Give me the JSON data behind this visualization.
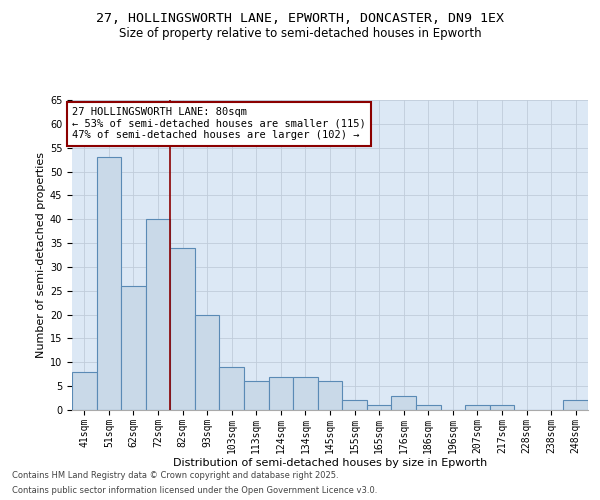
{
  "title_line1": "27, HOLLINGSWORTH LANE, EPWORTH, DONCASTER, DN9 1EX",
  "title_line2": "Size of property relative to semi-detached houses in Epworth",
  "xlabel": "Distribution of semi-detached houses by size in Epworth",
  "ylabel": "Number of semi-detached properties",
  "categories": [
    "41sqm",
    "51sqm",
    "62sqm",
    "72sqm",
    "82sqm",
    "93sqm",
    "103sqm",
    "113sqm",
    "124sqm",
    "134sqm",
    "145sqm",
    "155sqm",
    "165sqm",
    "176sqm",
    "186sqm",
    "196sqm",
    "207sqm",
    "217sqm",
    "228sqm",
    "238sqm",
    "248sqm"
  ],
  "values": [
    8,
    53,
    26,
    40,
    34,
    20,
    9,
    6,
    7,
    7,
    6,
    2,
    1,
    3,
    1,
    0,
    1,
    1,
    0,
    0,
    2
  ],
  "bar_color": "#c9d9e8",
  "bar_edge_color": "#5a8ab5",
  "bar_linewidth": 0.8,
  "vline_x": 3.5,
  "vline_color": "#8b0000",
  "vline_label": "27 HOLLINGSWORTH LANE: 80sqm",
  "annotation_smaller": "← 53% of semi-detached houses are smaller (115)",
  "annotation_larger": "47% of semi-detached houses are larger (102) →",
  "annotation_box_color": "#8b0000",
  "ylim": [
    0,
    65
  ],
  "yticks": [
    0,
    5,
    10,
    15,
    20,
    25,
    30,
    35,
    40,
    45,
    50,
    55,
    60,
    65
  ],
  "grid_color": "#c0ccda",
  "background_color": "#dce8f5",
  "footer_line1": "Contains HM Land Registry data © Crown copyright and database right 2025.",
  "footer_line2": "Contains public sector information licensed under the Open Government Licence v3.0.",
  "title_fontsize": 9.5,
  "subtitle_fontsize": 8.5,
  "axis_label_fontsize": 8,
  "tick_fontsize": 7,
  "annotation_fontsize": 7.5,
  "footer_fontsize": 6
}
